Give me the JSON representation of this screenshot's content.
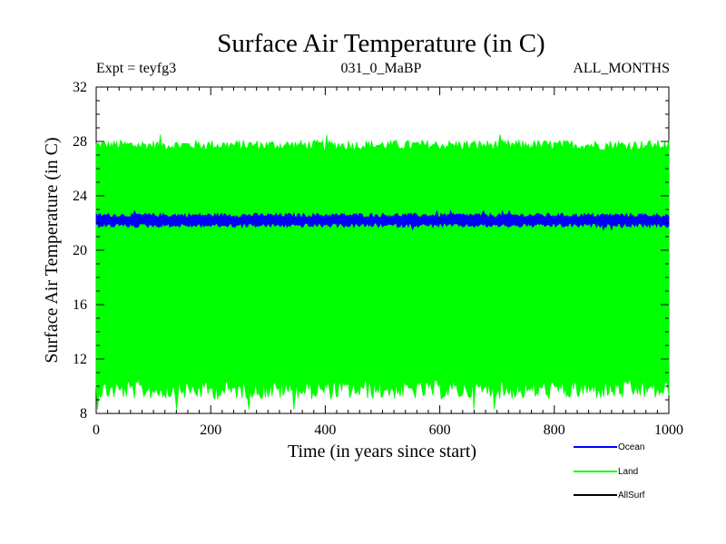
{
  "chart_data": {
    "type": "line",
    "title": "Surface Air Temperature (in C)",
    "subtitle_left": "Expt = teyfg3",
    "subtitle_center": "031_0_MaBP",
    "subtitle_right": "ALL_MONTHS",
    "xlabel": "Time (in years since start)",
    "ylabel": "Surface Air Temperature (in C)",
    "xlim": [
      0,
      1000
    ],
    "ylim": [
      8,
      32
    ],
    "xticks": [
      0,
      200,
      400,
      600,
      800,
      1000
    ],
    "yticks": [
      8,
      12,
      16,
      20,
      24,
      28,
      32
    ],
    "series": [
      {
        "name": "Land",
        "color": "#00ff00",
        "mean": 18.6,
        "envelope_upper": 27.8,
        "envelope_lower": 9.6,
        "max": 28.5,
        "min": 8.3
      },
      {
        "name": "Ocean",
        "color": "#0000ff",
        "mean": 22.2,
        "envelope_upper": 22.6,
        "envelope_lower": 21.8,
        "max": 22.9,
        "min": 21.5
      },
      {
        "name": "AllSurf",
        "color": "#000000"
      }
    ],
    "legend": [
      "Ocean",
      "Land",
      "AllSurf"
    ],
    "legend_position": "bottom-right"
  }
}
